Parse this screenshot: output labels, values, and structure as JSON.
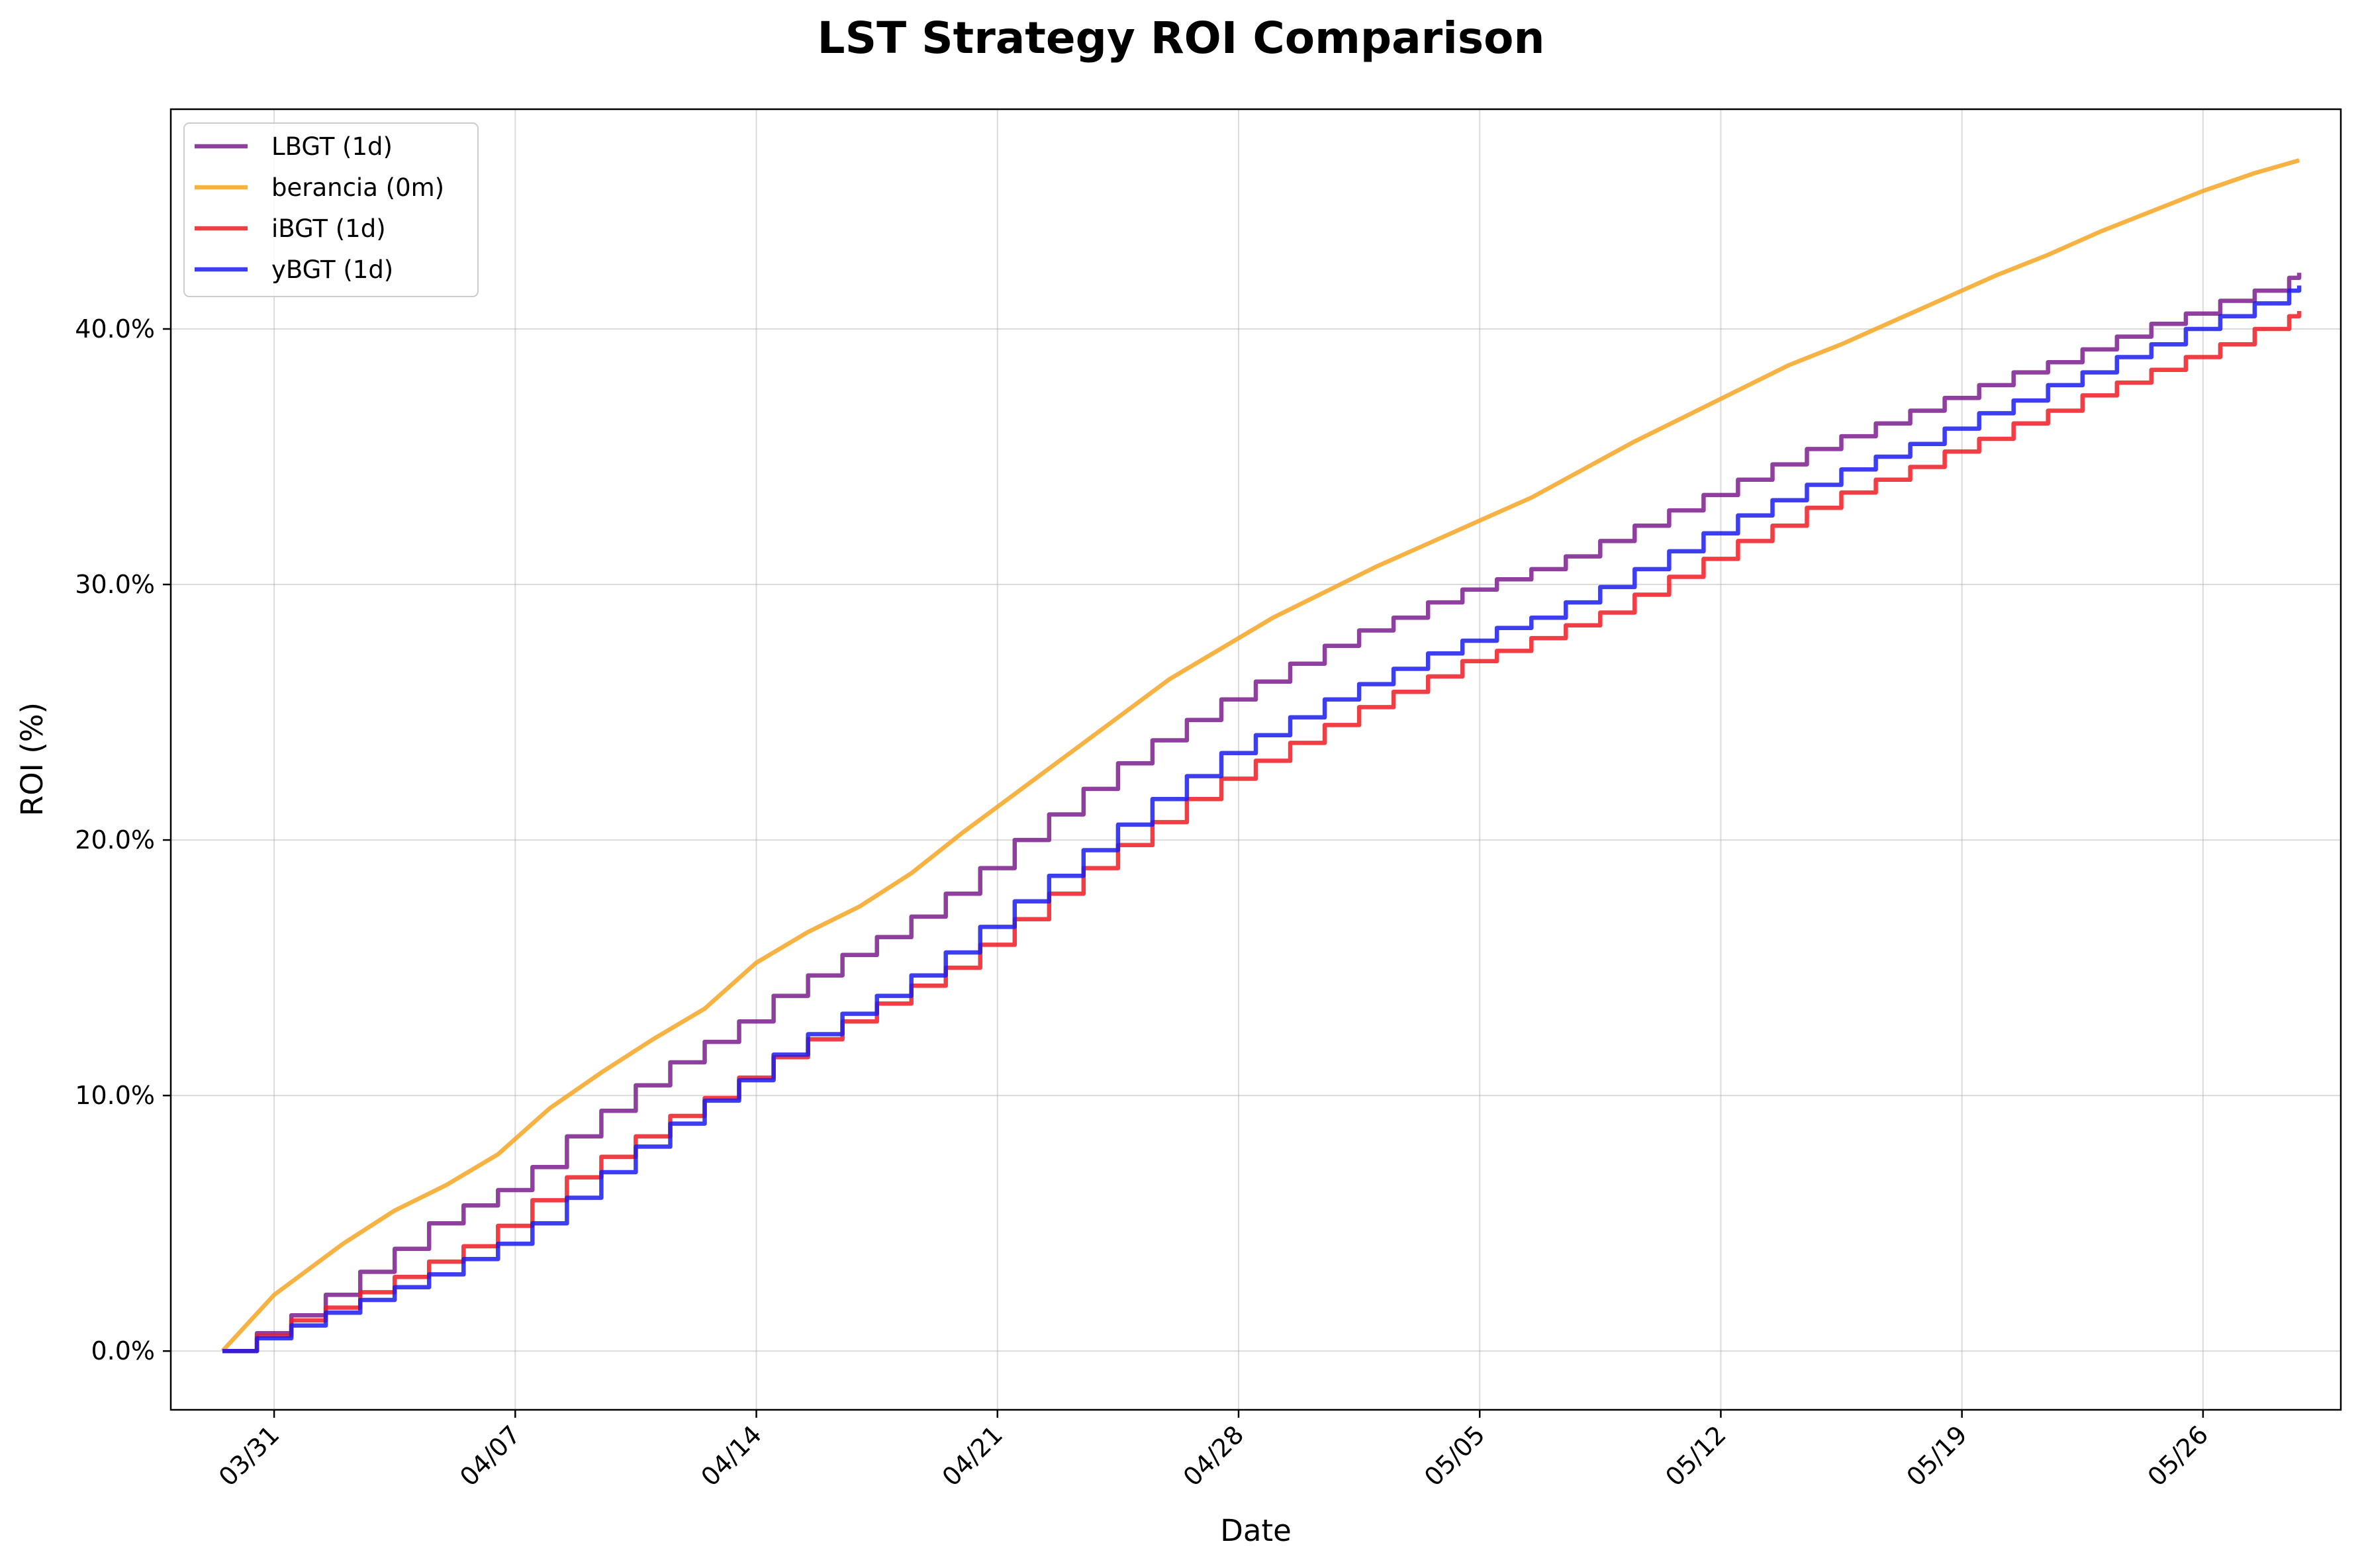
{
  "chart_data": {
    "type": "line",
    "title": "LST Strategy ROI Comparison",
    "xlabel": "Date",
    "ylabel": "ROI (%)",
    "x_axis": {
      "type": "date",
      "start": "2025-03-28",
      "end": "2025-05-30",
      "ticks": [
        "03/31",
        "04/07",
        "04/14",
        "04/21",
        "04/28",
        "05/05",
        "05/12",
        "05/19",
        "05/26"
      ],
      "tick_dates": [
        "2025-03-31",
        "2025-04-07",
        "2025-04-14",
        "2025-04-21",
        "2025-04-28",
        "2025-05-05",
        "2025-05-12",
        "2025-05-19",
        "2025-05-26"
      ]
    },
    "y_axis": {
      "min": -2.3,
      "max": 48.6,
      "ticks": [
        0,
        10,
        20,
        30,
        40
      ],
      "tick_labels": [
        "0.0%",
        "10.0%",
        "20.0%",
        "30.0%",
        "40.0%"
      ]
    },
    "grid": true,
    "legend_position": "top-left",
    "series": [
      {
        "name": "LBGT (1d)",
        "color": "#7b1f8e",
        "style": "step",
        "points": [
          [
            "2025-03-29T12:00",
            0.0
          ],
          [
            "2025-03-30T12:00",
            0.7
          ],
          [
            "2025-03-31T12:00",
            1.4
          ],
          [
            "2025-04-01T12:00",
            2.2
          ],
          [
            "2025-04-02T12:00",
            3.1
          ],
          [
            "2025-04-03T12:00",
            4.0
          ],
          [
            "2025-04-04T12:00",
            5.0
          ],
          [
            "2025-04-05T12:00",
            5.7
          ],
          [
            "2025-04-06T12:00",
            6.3
          ],
          [
            "2025-04-07T12:00",
            7.2
          ],
          [
            "2025-04-08T12:00",
            8.4
          ],
          [
            "2025-04-09T12:00",
            9.4
          ],
          [
            "2025-04-10T12:00",
            10.4
          ],
          [
            "2025-04-11T12:00",
            11.3
          ],
          [
            "2025-04-12T12:00",
            12.1
          ],
          [
            "2025-04-13T12:00",
            12.9
          ],
          [
            "2025-04-14T12:00",
            13.9
          ],
          [
            "2025-04-15T12:00",
            14.7
          ],
          [
            "2025-04-16T12:00",
            15.5
          ],
          [
            "2025-04-17T12:00",
            16.2
          ],
          [
            "2025-04-18T12:00",
            17.0
          ],
          [
            "2025-04-19T12:00",
            17.9
          ],
          [
            "2025-04-20T12:00",
            18.9
          ],
          [
            "2025-04-21T12:00",
            20.0
          ],
          [
            "2025-04-22T12:00",
            21.0
          ],
          [
            "2025-04-23T12:00",
            22.0
          ],
          [
            "2025-04-24T12:00",
            23.0
          ],
          [
            "2025-04-25T12:00",
            23.9
          ],
          [
            "2025-04-26T12:00",
            24.7
          ],
          [
            "2025-04-27T12:00",
            25.5
          ],
          [
            "2025-04-28T12:00",
            26.2
          ],
          [
            "2025-04-29T12:00",
            26.9
          ],
          [
            "2025-04-30T12:00",
            27.6
          ],
          [
            "2025-05-01T12:00",
            28.2
          ],
          [
            "2025-05-02T12:00",
            28.7
          ],
          [
            "2025-05-03T12:00",
            29.3
          ],
          [
            "2025-05-04T12:00",
            29.8
          ],
          [
            "2025-05-05T12:00",
            30.2
          ],
          [
            "2025-05-06T12:00",
            30.6
          ],
          [
            "2025-05-07T12:00",
            31.1
          ],
          [
            "2025-05-08T12:00",
            31.7
          ],
          [
            "2025-05-09T12:00",
            32.3
          ],
          [
            "2025-05-10T12:00",
            32.9
          ],
          [
            "2025-05-11T12:00",
            33.5
          ],
          [
            "2025-05-12T12:00",
            34.1
          ],
          [
            "2025-05-13T12:00",
            34.7
          ],
          [
            "2025-05-14T12:00",
            35.3
          ],
          [
            "2025-05-15T12:00",
            35.8
          ],
          [
            "2025-05-16T12:00",
            36.3
          ],
          [
            "2025-05-17T12:00",
            36.8
          ],
          [
            "2025-05-18T12:00",
            37.3
          ],
          [
            "2025-05-19T12:00",
            37.8
          ],
          [
            "2025-05-20T12:00",
            38.3
          ],
          [
            "2025-05-21T12:00",
            38.7
          ],
          [
            "2025-05-22T12:00",
            39.2
          ],
          [
            "2025-05-23T12:00",
            39.7
          ],
          [
            "2025-05-24T12:00",
            40.2
          ],
          [
            "2025-05-25T12:00",
            40.6
          ],
          [
            "2025-05-26T12:00",
            41.1
          ],
          [
            "2025-05-27T12:00",
            41.5
          ],
          [
            "2025-05-28T12:00",
            42.0
          ],
          [
            "2025-05-28T19:00",
            42.2
          ]
        ]
      },
      {
        "name": "berancia (0m)",
        "color": "#f5a623",
        "style": "line",
        "points": [
          [
            "2025-03-29T12:00",
            0.0
          ],
          [
            "2025-03-31T00:00",
            2.2
          ],
          [
            "2025-04-02T00:00",
            4.2
          ],
          [
            "2025-04-03T12:00",
            5.5
          ],
          [
            "2025-04-05T00:00",
            6.5
          ],
          [
            "2025-04-06T12:00",
            7.7
          ],
          [
            "2025-04-08T00:00",
            9.5
          ],
          [
            "2025-04-09T12:00",
            10.9
          ],
          [
            "2025-04-11T00:00",
            12.2
          ],
          [
            "2025-04-12T12:00",
            13.4
          ],
          [
            "2025-04-14T00:00",
            15.2
          ],
          [
            "2025-04-15T12:00",
            16.4
          ],
          [
            "2025-04-17T00:00",
            17.4
          ],
          [
            "2025-04-18T12:00",
            18.7
          ],
          [
            "2025-04-20T00:00",
            20.3
          ],
          [
            "2025-04-21T12:00",
            21.8
          ],
          [
            "2025-04-23T00:00",
            23.3
          ],
          [
            "2025-04-24T12:00",
            24.8
          ],
          [
            "2025-04-26T00:00",
            26.3
          ],
          [
            "2025-04-27T12:00",
            27.5
          ],
          [
            "2025-04-29T00:00",
            28.7
          ],
          [
            "2025-04-30T12:00",
            29.7
          ],
          [
            "2025-05-02T00:00",
            30.7
          ],
          [
            "2025-05-03T12:00",
            31.6
          ],
          [
            "2025-05-05T00:00",
            32.5
          ],
          [
            "2025-05-06T12:00",
            33.4
          ],
          [
            "2025-05-08T00:00",
            34.5
          ],
          [
            "2025-05-09T12:00",
            35.6
          ],
          [
            "2025-05-11T00:00",
            36.6
          ],
          [
            "2025-05-12T12:00",
            37.6
          ],
          [
            "2025-05-14T00:00",
            38.6
          ],
          [
            "2025-05-15T12:00",
            39.4
          ],
          [
            "2025-05-17T00:00",
            40.3
          ],
          [
            "2025-05-18T12:00",
            41.2
          ],
          [
            "2025-05-20T00:00",
            42.1
          ],
          [
            "2025-05-21T12:00",
            42.9
          ],
          [
            "2025-05-23T00:00",
            43.8
          ],
          [
            "2025-05-24T12:00",
            44.6
          ],
          [
            "2025-05-26T00:00",
            45.4
          ],
          [
            "2025-05-27T12:00",
            46.1
          ],
          [
            "2025-05-28T19:00",
            46.6
          ]
        ]
      },
      {
        "name": "iBGT (1d)",
        "color": "#ee1c24",
        "style": "step",
        "points": [
          [
            "2025-03-29T12:00",
            0.0
          ],
          [
            "2025-03-30T12:00",
            0.6
          ],
          [
            "2025-03-31T12:00",
            1.2
          ],
          [
            "2025-04-01T12:00",
            1.7
          ],
          [
            "2025-04-02T12:00",
            2.3
          ],
          [
            "2025-04-03T12:00",
            2.9
          ],
          [
            "2025-04-04T12:00",
            3.5
          ],
          [
            "2025-04-05T12:00",
            4.1
          ],
          [
            "2025-04-06T12:00",
            4.9
          ],
          [
            "2025-04-07T12:00",
            5.9
          ],
          [
            "2025-04-08T12:00",
            6.8
          ],
          [
            "2025-04-09T12:00",
            7.6
          ],
          [
            "2025-04-10T12:00",
            8.4
          ],
          [
            "2025-04-11T12:00",
            9.2
          ],
          [
            "2025-04-12T12:00",
            9.9
          ],
          [
            "2025-04-13T12:00",
            10.7
          ],
          [
            "2025-04-14T12:00",
            11.5
          ],
          [
            "2025-04-15T12:00",
            12.2
          ],
          [
            "2025-04-16T12:00",
            12.9
          ],
          [
            "2025-04-17T12:00",
            13.6
          ],
          [
            "2025-04-18T12:00",
            14.3
          ],
          [
            "2025-04-19T12:00",
            15.0
          ],
          [
            "2025-04-20T12:00",
            15.9
          ],
          [
            "2025-04-21T12:00",
            16.9
          ],
          [
            "2025-04-22T12:00",
            17.9
          ],
          [
            "2025-04-23T12:00",
            18.9
          ],
          [
            "2025-04-24T12:00",
            19.8
          ],
          [
            "2025-04-25T12:00",
            20.7
          ],
          [
            "2025-04-26T12:00",
            21.6
          ],
          [
            "2025-04-27T12:00",
            22.4
          ],
          [
            "2025-04-28T12:00",
            23.1
          ],
          [
            "2025-04-29T12:00",
            23.8
          ],
          [
            "2025-04-30T12:00",
            24.5
          ],
          [
            "2025-05-01T12:00",
            25.2
          ],
          [
            "2025-05-02T12:00",
            25.8
          ],
          [
            "2025-05-03T12:00",
            26.4
          ],
          [
            "2025-05-04T12:00",
            27.0
          ],
          [
            "2025-05-05T12:00",
            27.4
          ],
          [
            "2025-05-06T12:00",
            27.9
          ],
          [
            "2025-05-07T12:00",
            28.4
          ],
          [
            "2025-05-08T12:00",
            28.9
          ],
          [
            "2025-05-09T12:00",
            29.6
          ],
          [
            "2025-05-10T12:00",
            30.3
          ],
          [
            "2025-05-11T12:00",
            31.0
          ],
          [
            "2025-05-12T12:00",
            31.7
          ],
          [
            "2025-05-13T12:00",
            32.3
          ],
          [
            "2025-05-14T12:00",
            33.0
          ],
          [
            "2025-05-15T12:00",
            33.6
          ],
          [
            "2025-05-16T12:00",
            34.1
          ],
          [
            "2025-05-17T12:00",
            34.6
          ],
          [
            "2025-05-18T12:00",
            35.2
          ],
          [
            "2025-05-19T12:00",
            35.7
          ],
          [
            "2025-05-20T12:00",
            36.3
          ],
          [
            "2025-05-21T12:00",
            36.8
          ],
          [
            "2025-05-22T12:00",
            37.4
          ],
          [
            "2025-05-23T12:00",
            37.9
          ],
          [
            "2025-05-24T12:00",
            38.4
          ],
          [
            "2025-05-25T12:00",
            38.9
          ],
          [
            "2025-05-26T12:00",
            39.4
          ],
          [
            "2025-05-27T12:00",
            40.0
          ],
          [
            "2025-05-28T12:00",
            40.5
          ],
          [
            "2025-05-28T19:00",
            40.7
          ]
        ]
      },
      {
        "name": "yBGT (1d)",
        "color": "#1c1cee",
        "style": "step",
        "points": [
          [
            "2025-03-29T12:00",
            0.0
          ],
          [
            "2025-03-30T12:00",
            0.5
          ],
          [
            "2025-03-31T12:00",
            1.0
          ],
          [
            "2025-04-01T12:00",
            1.5
          ],
          [
            "2025-04-02T12:00",
            2.0
          ],
          [
            "2025-04-03T12:00",
            2.5
          ],
          [
            "2025-04-04T12:00",
            3.0
          ],
          [
            "2025-04-05T12:00",
            3.6
          ],
          [
            "2025-04-06T12:00",
            4.2
          ],
          [
            "2025-04-07T12:00",
            5.0
          ],
          [
            "2025-04-08T12:00",
            6.0
          ],
          [
            "2025-04-09T12:00",
            7.0
          ],
          [
            "2025-04-10T12:00",
            8.0
          ],
          [
            "2025-04-11T12:00",
            8.9
          ],
          [
            "2025-04-12T12:00",
            9.8
          ],
          [
            "2025-04-13T12:00",
            10.6
          ],
          [
            "2025-04-14T12:00",
            11.6
          ],
          [
            "2025-04-15T12:00",
            12.4
          ],
          [
            "2025-04-16T12:00",
            13.2
          ],
          [
            "2025-04-17T12:00",
            13.9
          ],
          [
            "2025-04-18T12:00",
            14.7
          ],
          [
            "2025-04-19T12:00",
            15.6
          ],
          [
            "2025-04-20T12:00",
            16.6
          ],
          [
            "2025-04-21T12:00",
            17.6
          ],
          [
            "2025-04-22T12:00",
            18.6
          ],
          [
            "2025-04-23T12:00",
            19.6
          ],
          [
            "2025-04-24T12:00",
            20.6
          ],
          [
            "2025-04-25T12:00",
            21.6
          ],
          [
            "2025-04-26T12:00",
            22.5
          ],
          [
            "2025-04-27T12:00",
            23.4
          ],
          [
            "2025-04-28T12:00",
            24.1
          ],
          [
            "2025-04-29T12:00",
            24.8
          ],
          [
            "2025-04-30T12:00",
            25.5
          ],
          [
            "2025-05-01T12:00",
            26.1
          ],
          [
            "2025-05-02T12:00",
            26.7
          ],
          [
            "2025-05-03T12:00",
            27.3
          ],
          [
            "2025-05-04T12:00",
            27.8
          ],
          [
            "2025-05-05T12:00",
            28.3
          ],
          [
            "2025-05-06T12:00",
            28.7
          ],
          [
            "2025-05-07T12:00",
            29.3
          ],
          [
            "2025-05-08T12:00",
            29.9
          ],
          [
            "2025-05-09T12:00",
            30.6
          ],
          [
            "2025-05-10T12:00",
            31.3
          ],
          [
            "2025-05-11T12:00",
            32.0
          ],
          [
            "2025-05-12T12:00",
            32.7
          ],
          [
            "2025-05-13T12:00",
            33.3
          ],
          [
            "2025-05-14T12:00",
            33.9
          ],
          [
            "2025-05-15T12:00",
            34.5
          ],
          [
            "2025-05-16T12:00",
            35.0
          ],
          [
            "2025-05-17T12:00",
            35.5
          ],
          [
            "2025-05-18T12:00",
            36.1
          ],
          [
            "2025-05-19T12:00",
            36.7
          ],
          [
            "2025-05-20T12:00",
            37.2
          ],
          [
            "2025-05-21T12:00",
            37.8
          ],
          [
            "2025-05-22T12:00",
            38.3
          ],
          [
            "2025-05-23T12:00",
            38.9
          ],
          [
            "2025-05-24T12:00",
            39.4
          ],
          [
            "2025-05-25T12:00",
            40.0
          ],
          [
            "2025-05-26T12:00",
            40.5
          ],
          [
            "2025-05-27T12:00",
            41.0
          ],
          [
            "2025-05-28T12:00",
            41.5
          ],
          [
            "2025-05-28T19:00",
            41.7
          ]
        ]
      }
    ]
  }
}
